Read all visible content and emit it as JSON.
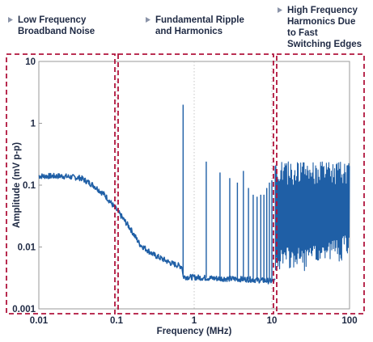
{
  "chart_data": {
    "type": "line",
    "title": "",
    "xlabel": "Frequency (MHz)",
    "ylabel": "Amplitude (mV p-p)",
    "x_scale": "log",
    "y_scale": "log",
    "xlim": [
      0.01,
      100
    ],
    "ylim": [
      0.001,
      10
    ],
    "x_ticks": [
      "0.01",
      "0.1",
      "1",
      "10",
      "100"
    ],
    "x_tick_values": [
      0.01,
      0.1,
      1,
      10,
      100
    ],
    "y_ticks": [
      "10",
      "1",
      "0.1",
      "0.01",
      "0.001"
    ],
    "y_tick_values": [
      10,
      1,
      0.1,
      0.01,
      0.001
    ],
    "grid": "vertical dotted gridlines at decades",
    "line_color": "#1f5fa6",
    "region_color": "#b0143c",
    "regions": [
      {
        "label": "Low Frequency Broadband Noise",
        "label_lines": [
          "Low Frequency",
          "Broadband Noise"
        ],
        "x_start": 0.01,
        "x_end": 0.1
      },
      {
        "label": "Fundamental Ripple and Harmonics",
        "label_lines": [
          "Fundamental Ripple",
          "and Harmonics"
        ],
        "x_start": 0.1,
        "x_end": 11
      },
      {
        "label": "High Frequency Harmonics Due to Fast Switching Edges",
        "label_lines": [
          "High Frequency",
          "Harmonics Due",
          "to Fast",
          "Switching Edges"
        ],
        "x_start": 11,
        "x_end": 100
      }
    ],
    "noise_floor": [
      {
        "x": 0.01,
        "y": 0.14
      },
      {
        "x": 0.02,
        "y": 0.14
      },
      {
        "x": 0.035,
        "y": 0.13
      },
      {
        "x": 0.05,
        "y": 0.1
      },
      {
        "x": 0.07,
        "y": 0.07
      },
      {
        "x": 0.1,
        "y": 0.04
      },
      {
        "x": 0.15,
        "y": 0.02
      },
      {
        "x": 0.2,
        "y": 0.011
      },
      {
        "x": 0.3,
        "y": 0.0075
      },
      {
        "x": 0.5,
        "y": 0.0055
      },
      {
        "x": 0.7,
        "y": 0.0048
      },
      {
        "x": 0.72,
        "y": 0.0033
      },
      {
        "x": 2,
        "y": 0.0031
      },
      {
        "x": 5,
        "y": 0.003
      },
      {
        "x": 10,
        "y": 0.0028
      },
      {
        "x": 15,
        "y": 0.003
      },
      {
        "x": 30,
        "y": 0.004
      },
      {
        "x": 60,
        "y": 0.0055
      },
      {
        "x": 100,
        "y": 0.0065
      }
    ],
    "harmonic_peaks": [
      {
        "x": 0.72,
        "y": 2.0
      },
      {
        "x": 1.43,
        "y": 0.24
      },
      {
        "x": 2.15,
        "y": 0.16
      },
      {
        "x": 2.87,
        "y": 0.13
      },
      {
        "x": 3.6,
        "y": 0.11
      },
      {
        "x": 4.3,
        "y": 0.17
      },
      {
        "x": 5.0,
        "y": 0.09
      },
      {
        "x": 5.75,
        "y": 0.07
      },
      {
        "x": 6.45,
        "y": 0.065
      },
      {
        "x": 7.2,
        "y": 0.07
      },
      {
        "x": 7.9,
        "y": 0.07
      },
      {
        "x": 8.6,
        "y": 0.09
      },
      {
        "x": 9.3,
        "y": 0.11
      },
      {
        "x": 10.0,
        "y": 0.12
      }
    ],
    "high_freq_band": {
      "x_start": 11,
      "x_end": 100,
      "peak_min": 0.1,
      "peak_max": 0.24,
      "trough": 0.004
    }
  }
}
